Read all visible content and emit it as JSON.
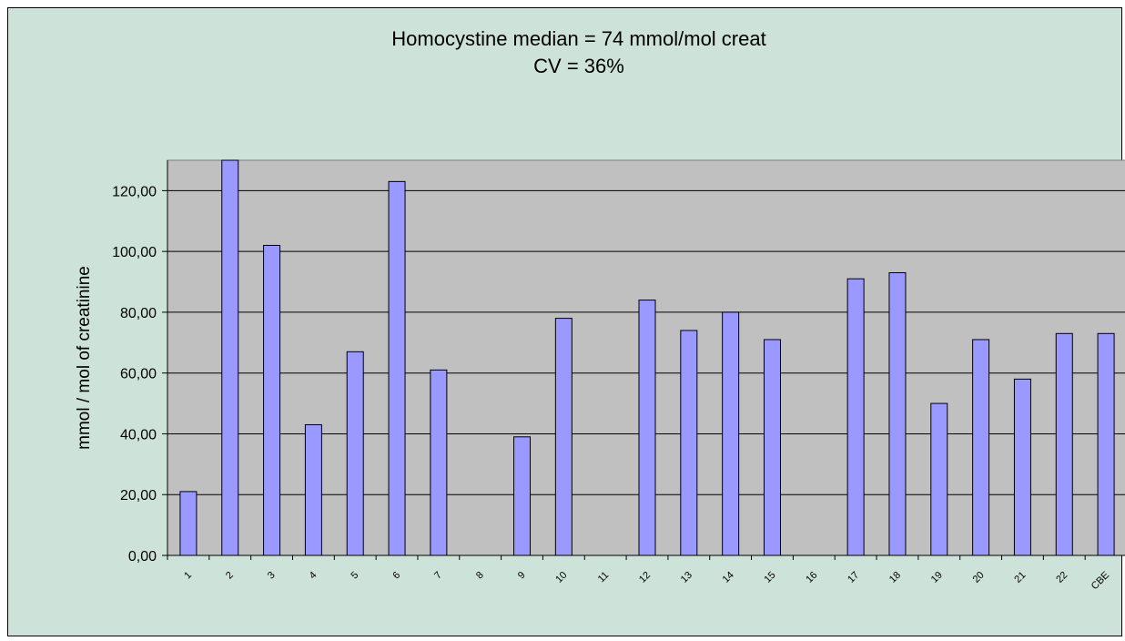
{
  "chart_data": {
    "type": "bar",
    "title": "Homocystine median = 74 mmol/mol creat",
    "subtitle": "CV = 36%",
    "y_label": "mmol / mol of creatinine",
    "categories": [
      "1",
      "2",
      "3",
      "4",
      "5",
      "6",
      "7",
      "8",
      "9",
      "10",
      "11",
      "12",
      "13",
      "14",
      "15",
      "16",
      "17",
      "18",
      "19",
      "20",
      "21",
      "22",
      "CBE"
    ],
    "values": [
      21,
      130,
      102,
      43,
      67,
      123,
      61,
      null,
      39,
      78,
      null,
      84,
      74,
      80,
      71,
      null,
      91,
      93,
      50,
      71,
      58,
      73,
      73
    ],
    "color": "#9999ff",
    "ylim": [
      0,
      130
    ],
    "yticks": [
      {
        "value": 0,
        "label": "0,00"
      },
      {
        "value": 20,
        "label": "20,00"
      },
      {
        "value": 40,
        "label": "40,00"
      },
      {
        "value": 60,
        "label": "60,00"
      },
      {
        "value": 80,
        "label": "80,00"
      },
      {
        "value": 100,
        "label": "100,00"
      },
      {
        "value": 120,
        "label": "120,00"
      }
    ],
    "grid": true
  }
}
